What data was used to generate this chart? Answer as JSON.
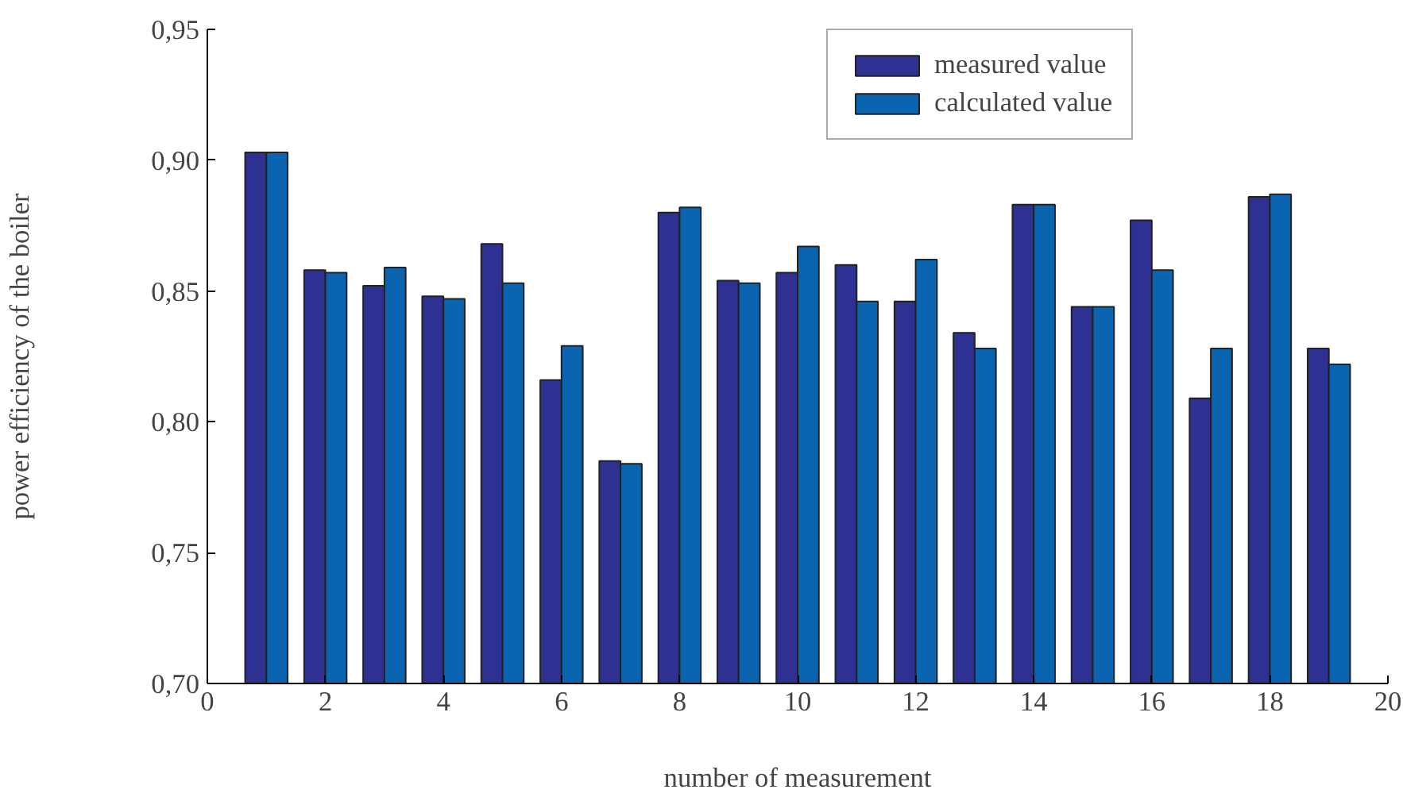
{
  "chart_data": {
    "type": "bar",
    "xlabel": "number of measurement",
    "ylabel": "power efficiency of the boiler",
    "x": [
      1,
      2,
      3,
      4,
      5,
      6,
      7,
      8,
      9,
      10,
      11,
      12,
      13,
      14,
      15,
      16,
      17,
      18,
      19
    ],
    "series": [
      {
        "name": "measured value",
        "color": "#2e3191",
        "values": [
          0.903,
          0.858,
          0.852,
          0.848,
          0.868,
          0.816,
          0.785,
          0.88,
          0.854,
          0.857,
          0.86,
          0.846,
          0.834,
          0.883,
          0.844,
          0.877,
          0.809,
          0.886,
          0.828
        ]
      },
      {
        "name": "calculated value",
        "color": "#0a64b0",
        "values": [
          0.903,
          0.857,
          0.859,
          0.847,
          0.853,
          0.829,
          0.784,
          0.882,
          0.853,
          0.867,
          0.846,
          0.862,
          0.828,
          0.883,
          0.844,
          0.858,
          0.828,
          0.887,
          0.822
        ]
      }
    ],
    "xlim": [
      0,
      20
    ],
    "xticks": [
      0,
      2,
      4,
      6,
      8,
      10,
      12,
      14,
      16,
      18,
      20
    ],
    "ylim": [
      0.7,
      0.95
    ],
    "yticks": [
      {
        "value": 0.7,
        "label": "0,70"
      },
      {
        "value": 0.75,
        "label": "0,75"
      },
      {
        "value": 0.8,
        "label": "0,80"
      },
      {
        "value": 0.85,
        "label": "0,85"
      },
      {
        "value": 0.9,
        "label": "0,90"
      },
      {
        "value": 0.95,
        "label": "0,95"
      }
    ],
    "grid": false,
    "legend": "top right"
  }
}
